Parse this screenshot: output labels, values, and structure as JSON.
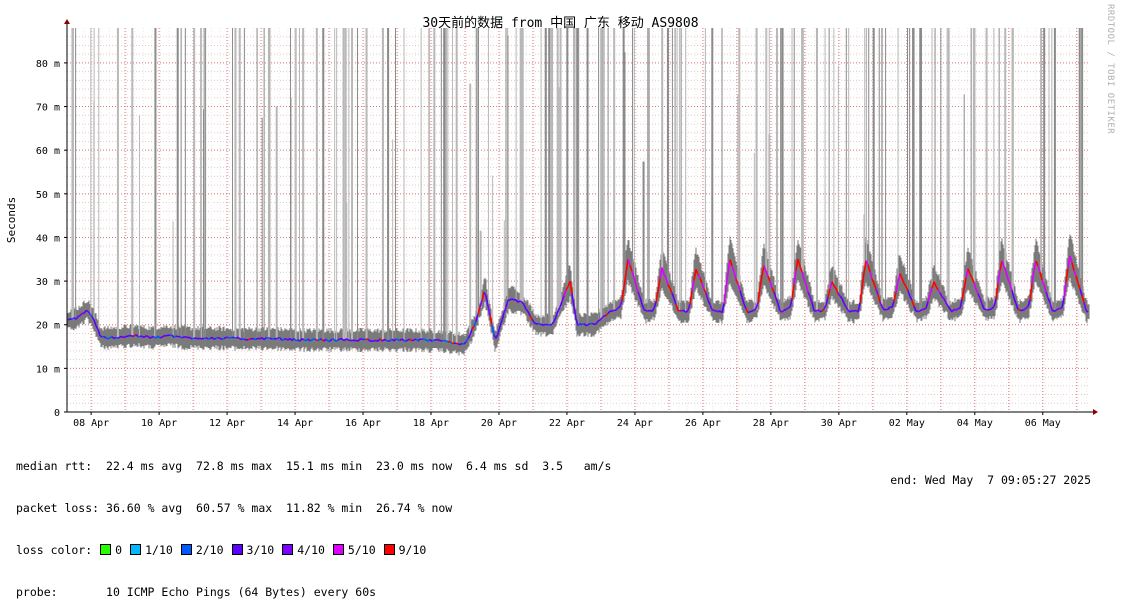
{
  "chart_data": {
    "type": "line",
    "title": "30天前的数据 from 中国 广东 移动 AS9808",
    "ylabel": "Seconds",
    "ylim": [
      0,
      0.088
    ],
    "y_ticks": [
      "0",
      "10 m",
      "20 m",
      "30 m",
      "40 m",
      "50 m",
      "60 m",
      "70 m",
      "80 m"
    ],
    "x_ticks": [
      "08 Apr",
      "10 Apr",
      "12 Apr",
      "14 Apr",
      "16 Apr",
      "18 Apr",
      "20 Apr",
      "22 Apr",
      "24 Apr",
      "26 Apr",
      "28 Apr",
      "30 Apr",
      "02 May",
      "04 May",
      "06 May"
    ],
    "grid": true,
    "series": [
      {
        "role": "median_rtt_ms",
        "x_days": [
          0.0,
          0.3,
          0.6,
          0.8,
          1.0,
          1.2,
          2.0,
          2.5,
          3.0,
          3.5,
          4.0,
          5.0,
          6.0,
          7.0,
          8.0,
          9.0,
          10.0,
          11.0,
          11.7,
          12.0,
          12.3,
          12.6,
          12.8,
          13.0,
          13.4,
          13.8,
          14.0,
          14.3,
          14.8,
          15.0,
          15.3,
          15.5,
          16.0,
          16.3,
          16.5,
          17.0,
          17.3,
          17.5,
          18.0,
          18.3,
          18.5,
          19.0,
          19.3,
          19.5,
          20.0,
          20.3,
          20.5,
          21.0,
          21.3,
          21.5,
          22.0,
          22.3,
          22.5,
          23.0,
          23.3,
          23.5,
          24.0,
          24.3,
          24.5,
          25.0,
          25.3,
          25.5,
          26.0,
          26.3,
          26.5,
          27.0,
          27.3,
          27.5,
          28.0,
          28.3,
          28.5,
          29.0,
          29.3,
          29.5,
          30.0
        ],
        "y_ms": [
          21.0,
          21.5,
          23.5,
          21.0,
          17.0,
          17.0,
          17.5,
          17.0,
          17.5,
          17.0,
          17.0,
          16.8,
          16.8,
          16.5,
          16.5,
          16.5,
          16.5,
          16.3,
          15.5,
          20.0,
          28.0,
          16.0,
          21.0,
          26.0,
          25.0,
          20.0,
          20.0,
          20.0,
          30.0,
          20.0,
          20.0,
          20.0,
          23.0,
          24.0,
          35.0,
          23.0,
          23.5,
          33.0,
          23.0,
          23.0,
          33.0,
          23.0,
          23.0,
          35.0,
          23.0,
          23.5,
          34.0,
          23.0,
          24.0,
          35.0,
          23.0,
          23.5,
          30.0,
          23.0,
          23.0,
          35.0,
          23.5,
          24.0,
          32.0,
          23.0,
          24.0,
          30.0,
          23.0,
          24.0,
          33.0,
          23.5,
          24.0,
          35.0,
          23.0,
          24.0,
          35.0,
          23.0,
          24.0,
          36.0,
          23.0
        ]
      }
    ]
  },
  "watermark": "RRDTOOL / TOBI OETIKER",
  "stats": {
    "rtt_label": "median rtt:",
    "rtt_values": "22.4 ms avg  72.8 ms max  15.1 ms min  23.0 ms now  6.4 ms sd  3.5   am/s",
    "loss_label": "packet loss:",
    "loss_values": "36.60 % avg  60.57 % max  11.82 % min  26.74 % now",
    "color_label": "loss color:",
    "probe_label": "probe:",
    "probe_value": "10 ICMP Echo Pings (64 Bytes) every 60s",
    "end": "end: Wed May  7 09:05:27 2025"
  },
  "loss_colors": [
    {
      "label": "0",
      "color": "#26ff00"
    },
    {
      "label": "1/10",
      "color": "#00b8ff"
    },
    {
      "label": "2/10",
      "color": "#0059ff"
    },
    {
      "label": "3/10",
      "color": "#5e00ff"
    },
    {
      "label": "4/10",
      "color": "#7e00ff"
    },
    {
      "label": "5/10",
      "color": "#dd00ff"
    },
    {
      "label": "9/10",
      "color": "#ff0000"
    }
  ]
}
